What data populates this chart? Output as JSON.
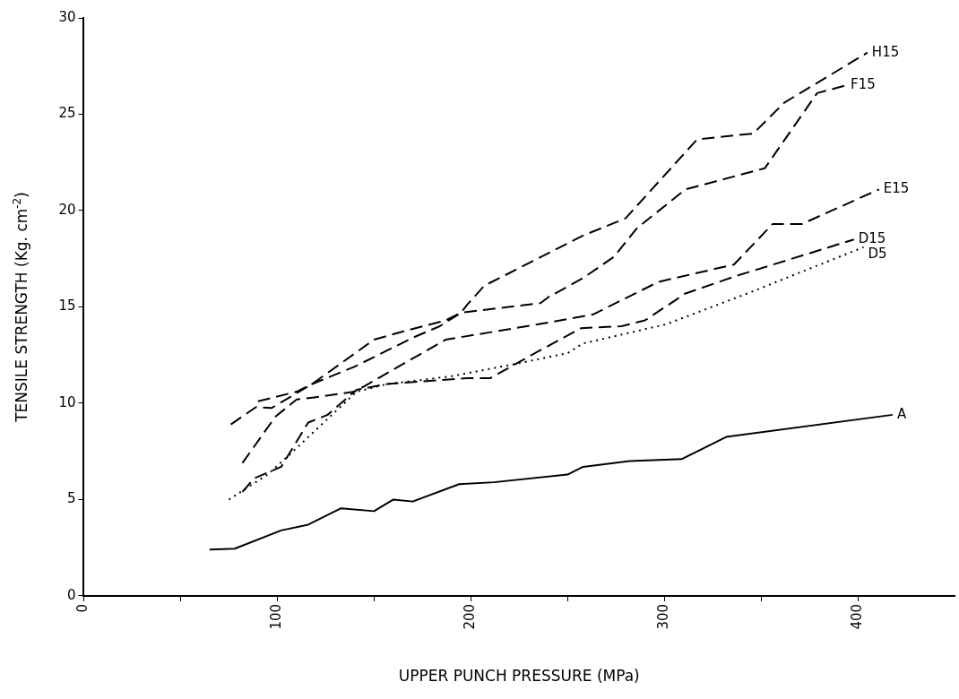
{
  "chart_data": {
    "type": "line",
    "xlabel": "UPPER PUNCH PRESSURE (MPa)",
    "ylabel": "TENSILE STRENGTH (Kg. cm$^{-2}$)",
    "xlim": [
      0,
      450
    ],
    "ylim": [
      0,
      30
    ],
    "xticks": [
      0,
      {
        "value": 50,
        "label": null
      },
      100,
      {
        "value": 150,
        "label": null
      },
      200,
      {
        "value": 250,
        "label": null
      },
      300,
      {
        "value": 350,
        "label": null
      },
      400
    ],
    "yticks": [
      0,
      5,
      10,
      15,
      20,
      25,
      30
    ],
    "grid": false,
    "legend": false,
    "marker": "none",
    "series": [
      {
        "name": "H15",
        "color": "#000000",
        "line_style": "dashed",
        "x": [
          76,
          89,
          97,
          118,
          150,
          164,
          187,
          195,
          198,
          207,
          258,
          280,
          317,
          346,
          362,
          405
        ],
        "values": [
          8.9,
          9.8,
          9.75,
          11.0,
          13.3,
          13.7,
          14.3,
          14.7,
          15.1,
          16.1,
          18.7,
          19.6,
          23.7,
          24.0,
          25.6,
          28.2
        ]
      },
      {
        "name": "F15",
        "color": "#000000",
        "line_style": "dashed",
        "x": [
          90,
          110,
          118,
          140,
          170,
          184,
          195,
          236,
          240,
          258,
          274,
          286,
          311,
          352,
          379,
          394
        ],
        "values": [
          10.1,
          10.6,
          11.0,
          11.9,
          13.4,
          14.0,
          14.7,
          15.2,
          15.5,
          16.5,
          17.6,
          19.1,
          21.1,
          22.2,
          26.1,
          26.5
        ]
      },
      {
        "name": "E15",
        "color": "#000000",
        "line_style": "dashed",
        "x": [
          82,
          99,
          110,
          119,
          140,
          187,
          235,
          263,
          297,
          336,
          356,
          371,
          411
        ],
        "values": [
          6.9,
          9.3,
          10.2,
          10.3,
          10.6,
          13.3,
          14.1,
          14.6,
          16.3,
          17.2,
          19.3,
          19.3,
          21.1
        ]
      },
      {
        "name": "D15",
        "color": "#000000",
        "line_style": "dashed",
        "x": [
          82,
          88,
          102,
          116,
          126,
          141,
          157,
          198,
          210,
          235,
          257,
          278,
          290,
          311,
          337,
          398
        ],
        "values": [
          5.4,
          6.1,
          6.7,
          9.0,
          9.4,
          10.7,
          11.0,
          11.3,
          11.3,
          12.7,
          13.9,
          14.0,
          14.3,
          15.7,
          16.6,
          18.5
        ]
      },
      {
        "name": "D5",
        "color": "#000000",
        "line_style": "dotted",
        "x": [
          75,
          95,
          106,
          141,
          157,
          190,
          226,
          250,
          258,
          301,
          343,
          403
        ],
        "values": [
          5.0,
          6.3,
          7.3,
          10.6,
          11.0,
          11.4,
          12.1,
          12.6,
          13.1,
          14.1,
          15.7,
          18.1
        ]
      },
      {
        "name": "A",
        "color": "#000000",
        "line_style": "solid",
        "x": [
          65,
          78,
          102,
          116,
          133,
          150,
          160,
          170,
          194,
          212,
          250,
          258,
          282,
          309,
          332,
          418
        ],
        "values": [
          2.4,
          2.45,
          3.4,
          3.7,
          4.55,
          4.4,
          5.0,
          4.9,
          5.8,
          5.9,
          6.3,
          6.7,
          7.0,
          7.1,
          8.25,
          9.4
        ]
      }
    ]
  }
}
